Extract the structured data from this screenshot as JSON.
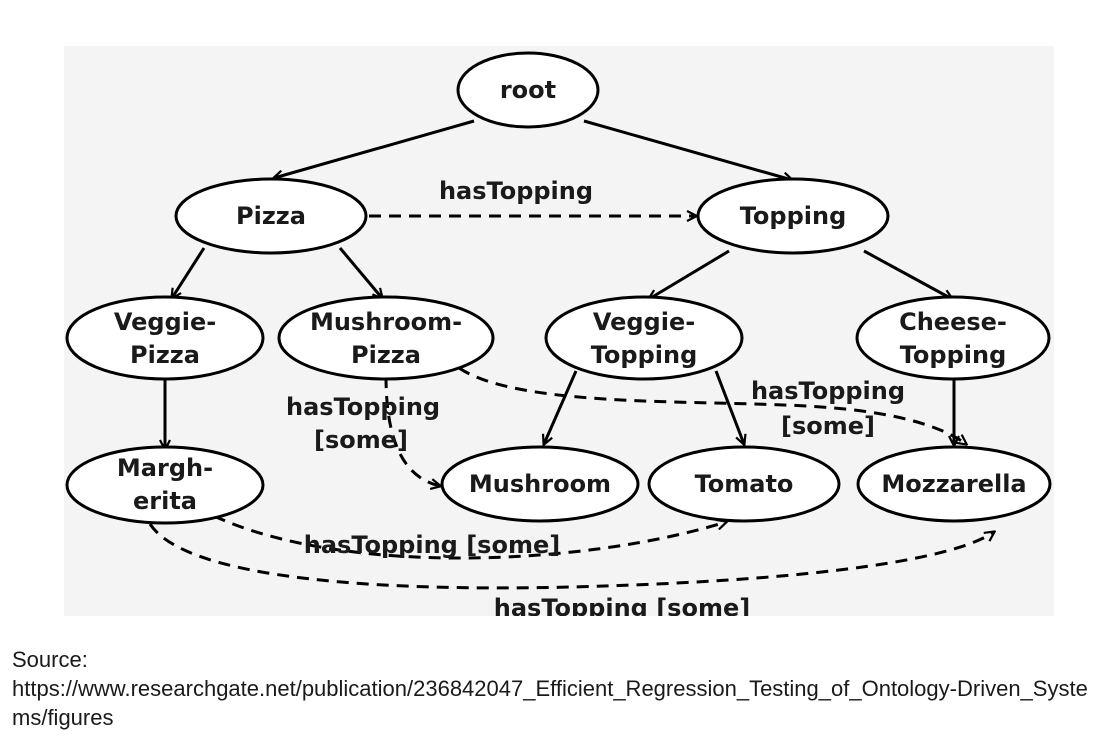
{
  "nodes": {
    "root": [
      "root"
    ],
    "pizza": [
      "Pizza"
    ],
    "topping": [
      "Topping"
    ],
    "veggie_pizza": [
      "Veggie-",
      "Pizza"
    ],
    "mushroom_pizza": [
      "Mushroom-",
      "Pizza"
    ],
    "veggie_topping": [
      "Veggie-",
      "Topping"
    ],
    "cheese_topping": [
      "Cheese-",
      "Topping"
    ],
    "margherita": [
      "Margh-",
      "erita"
    ],
    "mushroom": [
      "Mushroom"
    ],
    "tomato": [
      "Tomato"
    ],
    "mozzarella": [
      "Mozzarella"
    ]
  },
  "edge_labels": {
    "pizza_topping": [
      "hasTopping"
    ],
    "mushroompizza_mushroom": [
      "hasTopping",
      "[some]"
    ],
    "mushroompizza_mozzarella": [
      "hasTopping",
      "[some]"
    ],
    "margherita_tomato": [
      "hasTopping [some]"
    ],
    "margherita_mozzarella": [
      "hasTopping [some]"
    ]
  },
  "source": {
    "label": "Source:",
    "url": "https://www.researchgate.net/publication/236842047_Efficient_Regression_Testing_of_Ontology-Driven_Systems/figures"
  }
}
